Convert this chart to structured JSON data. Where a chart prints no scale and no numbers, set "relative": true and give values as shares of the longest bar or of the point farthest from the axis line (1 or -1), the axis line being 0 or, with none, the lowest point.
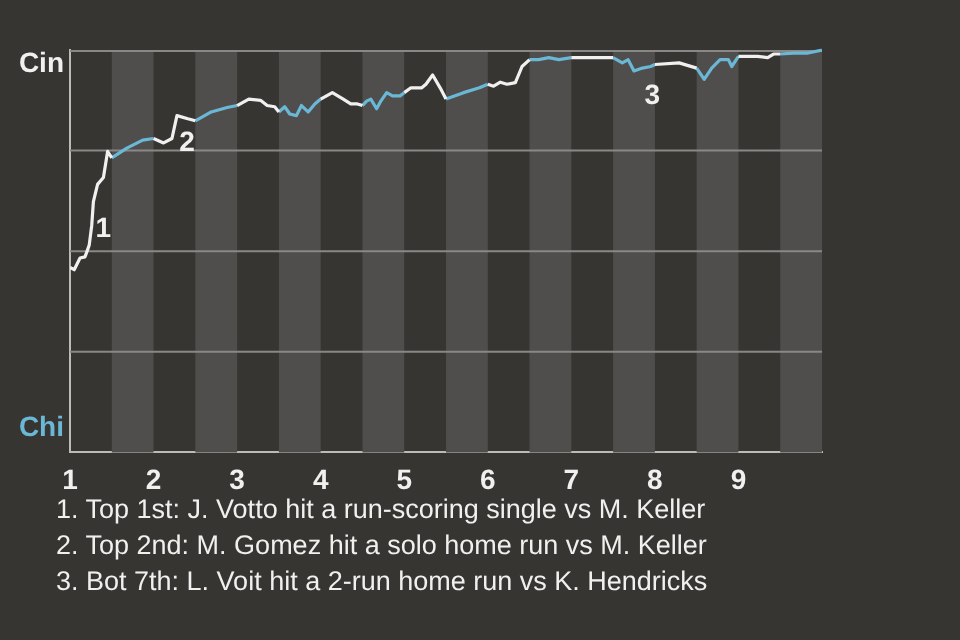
{
  "chart_data": {
    "type": "line",
    "relative": true,
    "marker": "none",
    "line_style": "solid",
    "xlim": [
      1,
      10
    ],
    "xticks": [
      1,
      2,
      3,
      4,
      5,
      6,
      7,
      8,
      9
    ],
    "series": [
      {
        "color": "#f0f0f0",
        "x": [
          1,
          1.05,
          1.12,
          1.18,
          1.23,
          1.26,
          1.28,
          1.33,
          1.4,
          1.45,
          1.5,
          1.75,
          2.0,
          2.12,
          2.22,
          2.28,
          2.41,
          2.5,
          2.75,
          3.0,
          3.14,
          3.28,
          3.36,
          3.45,
          3.5,
          3.75,
          4.0,
          4.14,
          4.27,
          4.36,
          4.44,
          4.5,
          4.75,
          5.0,
          5.08,
          5.21,
          5.26,
          5.34,
          5.43,
          5.5,
          5.75,
          6.0,
          6.07,
          6.15,
          6.23,
          6.33,
          6.41,
          6.5,
          6.75,
          7.0,
          7.29,
          7.5,
          7.75,
          8.0,
          8.29,
          8.5,
          8.75,
          9.0,
          9.23,
          9.35,
          9.42,
          9.5
        ],
        "values": [
          0.46,
          0.454,
          0.483,
          0.486,
          0.515,
          0.564,
          0.623,
          0.666,
          0.683,
          0.748,
          0.732,
          null,
          0.78,
          0.769,
          0.78,
          0.837,
          0.829,
          0.824,
          null,
          0.862,
          0.878,
          0.875,
          0.862,
          0.859,
          0.846,
          null,
          0.878,
          0.894,
          0.878,
          0.866,
          0.866,
          0.862,
          null,
          0.894,
          0.906,
          0.906,
          0.915,
          0.938,
          0.906,
          0.878,
          null,
          0.915,
          0.91,
          0.92,
          0.915,
          0.919,
          0.959,
          0.976,
          null,
          0.981,
          0.981,
          0.981,
          null,
          0.964,
          0.968,
          0.955,
          null,
          0.984,
          0.984,
          0.981,
          0.99,
          0.99
        ]
      },
      {
        "color": "#6ab7d6",
        "x": [
          1.5,
          1.68,
          1.87,
          2.0,
          2.25,
          2.5,
          2.69,
          2.88,
          3.0,
          3.25,
          3.5,
          3.57,
          3.63,
          3.71,
          3.77,
          3.85,
          3.93,
          4.0,
          4.25,
          4.5,
          4.55,
          4.6,
          4.67,
          4.72,
          4.79,
          4.86,
          4.95,
          5.0,
          5.25,
          5.5,
          5.71,
          5.9,
          6.0,
          6.25,
          6.5,
          6.61,
          6.73,
          6.85,
          7.0,
          7.25,
          7.5,
          7.61,
          7.68,
          7.75,
          7.85,
          7.95,
          8.0,
          8.25,
          8.5,
          8.59,
          8.68,
          8.78,
          8.88,
          8.92,
          9.0,
          9.25,
          9.5,
          9.66,
          9.82,
          10.0
        ],
        "values": [
          0.732,
          0.756,
          0.776,
          0.78,
          null,
          0.824,
          0.846,
          0.857,
          0.862,
          null,
          0.846,
          0.859,
          0.841,
          0.837,
          0.862,
          0.846,
          0.866,
          0.878,
          null,
          0.862,
          0.873,
          0.878,
          0.854,
          0.873,
          0.894,
          0.886,
          0.886,
          0.894,
          null,
          0.878,
          0.894,
          0.906,
          0.915,
          null,
          0.976,
          0.976,
          0.981,
          0.976,
          0.981,
          null,
          0.981,
          0.968,
          0.976,
          0.948,
          0.955,
          0.959,
          0.964,
          null,
          0.955,
          0.927,
          0.955,
          0.976,
          0.976,
          0.959,
          0.984,
          null,
          0.99,
          0.992,
          0.992,
          1
        ]
      }
    ],
    "bands": [
      {
        "axis": "x",
        "from": 1.5,
        "to": 2,
        "color": "#4f4e4c"
      },
      {
        "axis": "x",
        "from": 2.5,
        "to": 3,
        "color": "#4f4e4c"
      },
      {
        "axis": "x",
        "from": 3.5,
        "to": 4,
        "color": "#4f4e4c"
      },
      {
        "axis": "x",
        "from": 4.5,
        "to": 5,
        "color": "#4f4e4c"
      },
      {
        "axis": "x",
        "from": 5.5,
        "to": 6,
        "color": "#4f4e4c"
      },
      {
        "axis": "x",
        "from": 6.5,
        "to": 7,
        "color": "#4f4e4c"
      },
      {
        "axis": "x",
        "from": 7.5,
        "to": 8,
        "color": "#4f4e4c"
      },
      {
        "axis": "x",
        "from": 8.5,
        "to": 9,
        "color": "#4f4e4c"
      },
      {
        "axis": "x",
        "from": 9.5,
        "to": 10,
        "color": "#4f4e4c"
      }
    ],
    "ref_lines": [
      {
        "axis": "y",
        "value": 0.25,
        "color": "#8a8886"
      },
      {
        "axis": "y",
        "value": 0.5,
        "color": "#8a8886"
      },
      {
        "axis": "y",
        "value": 0.75,
        "color": "#8a8886"
      }
    ],
    "annotations": [
      "Cin",
      "Chi",
      {
        "text": "1",
        "x": 1.28,
        "y": 0.623
      },
      {
        "text": "2",
        "x": 2.28,
        "y": 0.837
      },
      {
        "text": "3",
        "x": 7.85,
        "y": 0.955
      },
      "1. Top 1st: J. Votto hit a run-scoring single vs M. Keller",
      "2. Top 2nd: M. Gomez hit a solo home run vs M. Keller",
      "3. Bot 7th: L. Voit hit a 2-run home run vs K. Hendricks"
    ]
  }
}
